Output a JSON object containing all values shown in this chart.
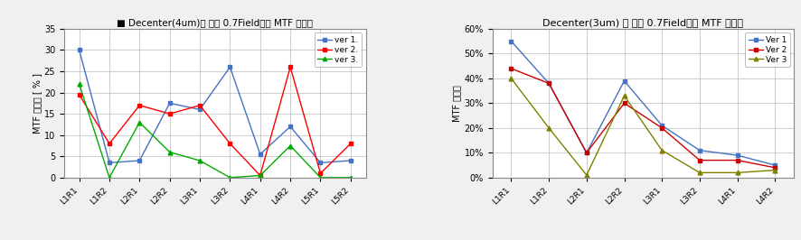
{
  "chart1": {
    "title": "■ Decenter(4um)에 따른 0.7Field에서 MTF 변화율",
    "ylabel": "MTF 변화율 [ % ]",
    "xlabels": [
      "L1R1",
      "L1R2",
      "L2R1",
      "L2R2",
      "L3R1",
      "L3R2",
      "L4R1",
      "L4R2",
      "L5R1",
      "L5R2"
    ],
    "ver1": [
      30,
      3.5,
      4,
      17.5,
      16,
      26,
      5.5,
      12,
      3.5,
      4
    ],
    "ver2": [
      19.5,
      8,
      17,
      15,
      17,
      8,
      0.5,
      26,
      1,
      8
    ],
    "ver3": [
      22,
      0,
      13,
      6,
      4,
      0,
      0.5,
      7.5,
      0,
      0
    ],
    "ylim": [
      0,
      35
    ],
    "yticks": [
      0,
      5,
      10,
      15,
      20,
      25,
      30,
      35
    ],
    "color_ver1": "#4472C4",
    "color_ver2": "#FF0000",
    "color_ver3": "#00AA00",
    "legend_labels": [
      "ver 1.",
      "ver 2.",
      "ver 3."
    ]
  },
  "chart2": {
    "title": "Decenter(3um) 에 따른 0.7Field에서 MTF 변화율",
    "ylabel": "MTF 변화율",
    "xlabels": [
      "L1R1",
      "L1R2",
      "L2R1",
      "L2R2",
      "L3R1",
      "L3R2",
      "L4R1",
      "L4R2"
    ],
    "ver1": [
      55,
      38,
      10,
      39,
      21,
      11,
      9,
      5
    ],
    "ver2": [
      44,
      38,
      10,
      30,
      20,
      7,
      7,
      4
    ],
    "ver3": [
      40,
      20,
      1,
      33,
      11,
      2,
      2,
      3
    ],
    "ylim": [
      0,
      60
    ],
    "yticks": [
      0,
      10,
      20,
      30,
      40,
      50,
      60
    ],
    "yticklabels": [
      "0%",
      "10%",
      "20%",
      "30%",
      "40%",
      "50%",
      "60%"
    ],
    "color_ver1": "#4472C4",
    "color_ver2": "#CC0000",
    "color_ver3": "#808000",
    "legend_labels": [
      "Ver 1",
      "Ver 2",
      "Ver 3"
    ]
  },
  "bg_color": "#f0f0f0",
  "plot_bg": "#ffffff"
}
